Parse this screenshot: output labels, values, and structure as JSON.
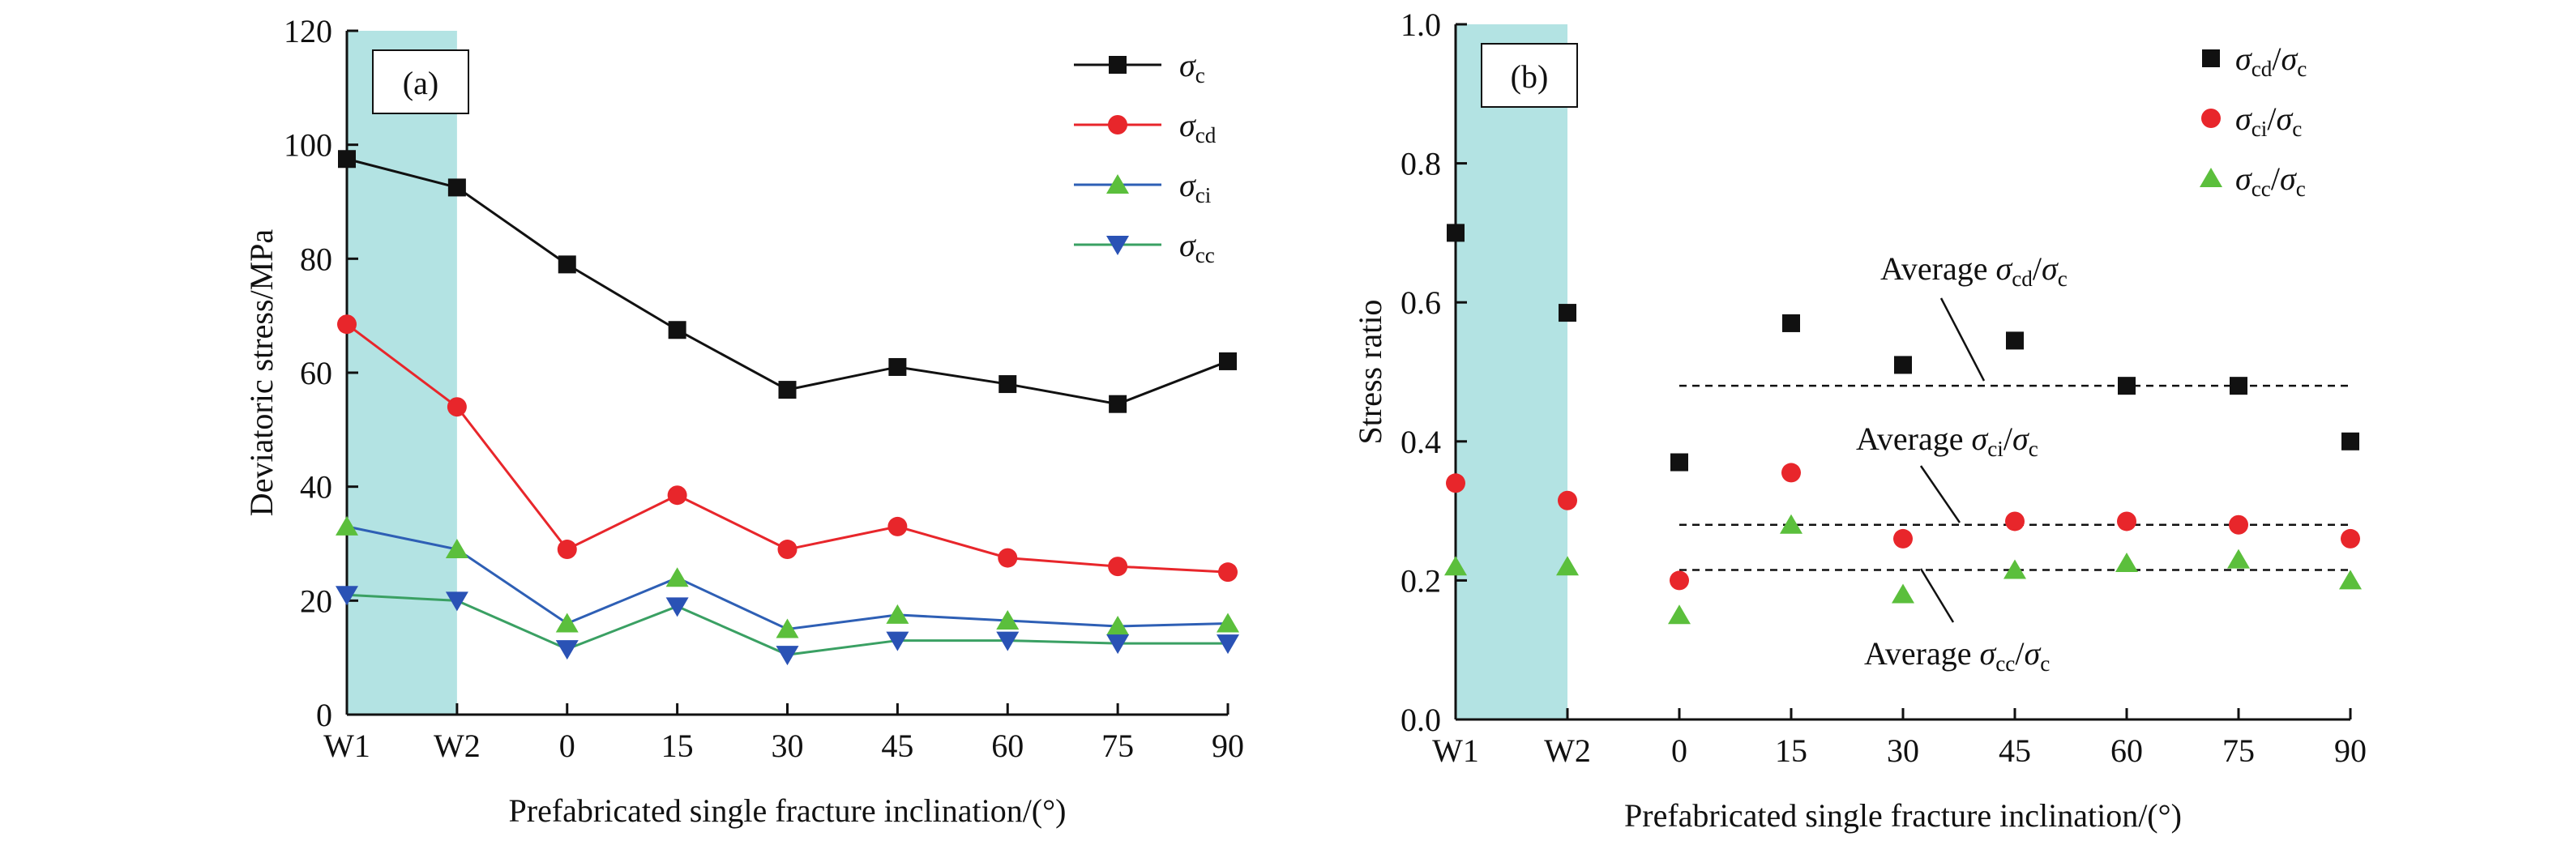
{
  "chart_data": [
    {
      "type": "line",
      "panel_label": "(a)",
      "xlabel": "Prefabricated single fracture inclination/(°)",
      "ylabel": "Deviatoric stress/MPa",
      "categories": [
        "W1",
        "W2",
        "0",
        "15",
        "30",
        "45",
        "60",
        "75",
        "90"
      ],
      "ylim": [
        0,
        120
      ],
      "yticks": [
        0,
        20,
        40,
        60,
        80,
        100,
        120
      ],
      "shaded_categories": [
        "W1",
        "W2"
      ],
      "shade_color": "#b3e3e3",
      "legend_position": "top-right",
      "series": [
        {
          "name_main": "σ",
          "name_sub": "c",
          "color": "#111111",
          "marker": "square",
          "values": [
            97.5,
            92.5,
            79,
            67.5,
            57,
            61,
            58,
            54.5,
            62
          ]
        },
        {
          "name_main": "σ",
          "name_sub": "cd",
          "color": "#e8262b",
          "marker": "circle",
          "values": [
            68.5,
            54,
            29,
            38.5,
            29,
            33,
            27.5,
            26,
            25
          ]
        },
        {
          "name_main": "σ",
          "name_sub": "ci",
          "color": "#2e5fb5",
          "marker": "triangle-up",
          "marker_color": "#5bbf3c",
          "values": [
            33,
            29,
            16,
            24,
            15,
            17.5,
            16.5,
            15.5,
            16
          ]
        },
        {
          "name_main": "σ",
          "name_sub": "cc",
          "color": "#3aa063",
          "marker": "triangle-down",
          "marker_color": "#2a52b5",
          "values": [
            21,
            20,
            11.5,
            19,
            10.5,
            13,
            13,
            12.5,
            12.5
          ]
        }
      ]
    },
    {
      "type": "scatter",
      "panel_label": "(b)",
      "xlabel": "Prefabricated single fracture inclination/(°)",
      "ylabel": "Stress ratio",
      "categories": [
        "W1",
        "W2",
        "0",
        "15",
        "30",
        "45",
        "60",
        "75",
        "90"
      ],
      "ylim": [
        0.0,
        1.0
      ],
      "yticks": [
        "0.0",
        "0.2",
        "0.4",
        "0.6",
        "0.8",
        "1.0"
      ],
      "shaded_categories": [
        "W1",
        "W2"
      ],
      "shade_color": "#b3e3e3",
      "legend_position": "top-right",
      "series": [
        {
          "name_parts": [
            [
              "σ",
              "cd"
            ],
            [
              "σ",
              "c"
            ]
          ],
          "color": "#111111",
          "marker": "square",
          "values": [
            0.7,
            0.585,
            0.37,
            0.57,
            0.51,
            0.545,
            0.48,
            0.48,
            0.4
          ]
        },
        {
          "name_parts": [
            [
              "σ",
              "ci"
            ],
            [
              "σ",
              "c"
            ]
          ],
          "color": "#e8262b",
          "marker": "circle",
          "values": [
            0.34,
            0.315,
            0.2,
            0.355,
            0.26,
            0.285,
            0.285,
            0.28,
            0.26
          ]
        },
        {
          "name_parts": [
            [
              "σ",
              "cc"
            ],
            [
              "σ",
              "c"
            ]
          ],
          "color": "#5bbf3c",
          "marker": "triangle-up",
          "values": [
            0.22,
            0.22,
            0.15,
            0.28,
            0.18,
            0.215,
            0.225,
            0.23,
            0.2
          ]
        }
      ],
      "reference_lines": [
        {
          "label_prefix": "Average ",
          "parts": [
            [
              "σ",
              "cd"
            ],
            [
              "σ",
              "c"
            ]
          ],
          "value": 0.48,
          "from_category": "0",
          "to_category": "90"
        },
        {
          "label_prefix": "Average ",
          "parts": [
            [
              "σ",
              "ci"
            ],
            [
              "σ",
              "c"
            ]
          ],
          "value": 0.28,
          "from_category": "0",
          "to_category": "90"
        },
        {
          "label_prefix": "Average ",
          "parts": [
            [
              "σ",
              "cc"
            ],
            [
              "σ",
              "c"
            ]
          ],
          "value": 0.215,
          "from_category": "0",
          "to_category": "90"
        }
      ]
    }
  ]
}
